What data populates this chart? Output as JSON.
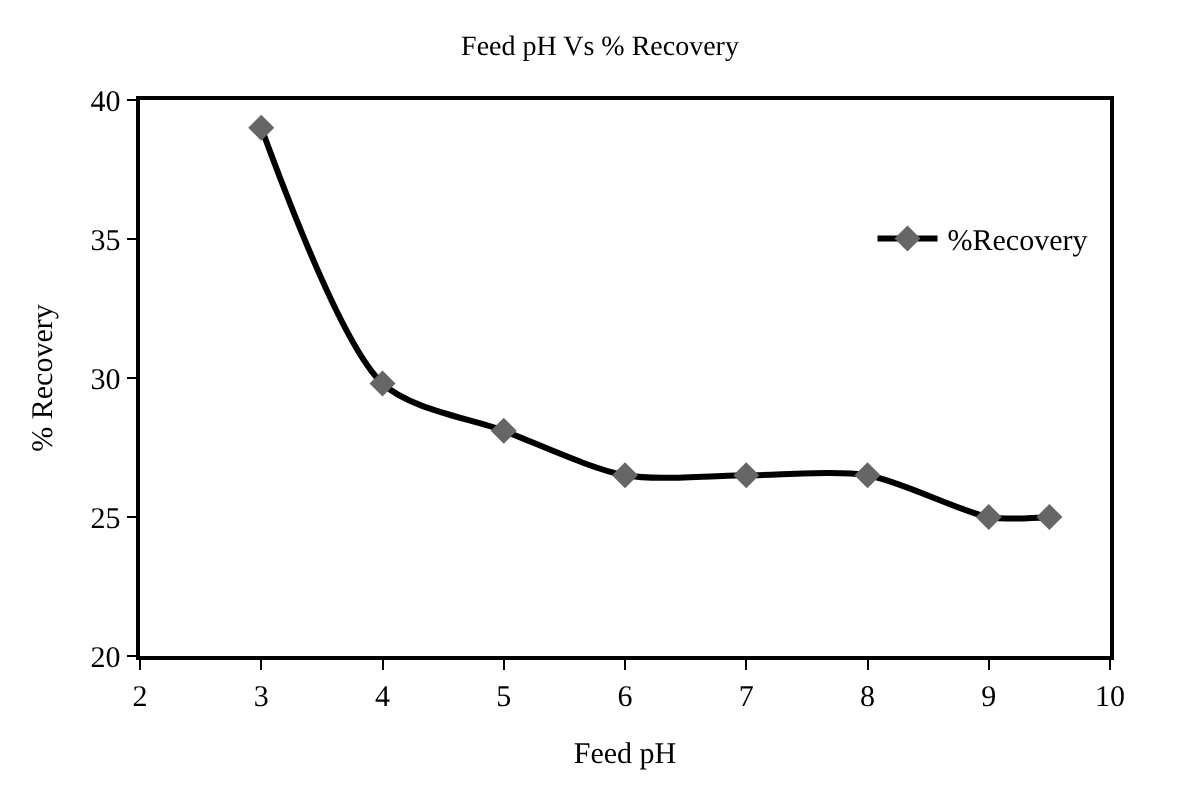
{
  "chart_data": {
    "type": "line",
    "title": "Feed pH Vs % Recovery",
    "xlabel": "Feed pH",
    "ylabel": "% Recovery",
    "x": [
      3,
      4,
      5,
      6,
      7,
      8,
      9,
      9.5
    ],
    "series": [
      {
        "name": "%Recovery",
        "color": "#000000",
        "values": [
          39.0,
          29.8,
          28.1,
          26.5,
          26.5,
          26.5,
          25.0,
          25.0
        ]
      }
    ],
    "xlim": [
      2,
      10
    ],
    "xticks": [
      2,
      3,
      4,
      5,
      6,
      7,
      8,
      9,
      10
    ],
    "ylim": [
      20,
      40
    ],
    "yticks": [
      20,
      25,
      30,
      35,
      40
    ],
    "grid": false,
    "legend": "right",
    "marker": "diamond",
    "line_style": "solid"
  }
}
